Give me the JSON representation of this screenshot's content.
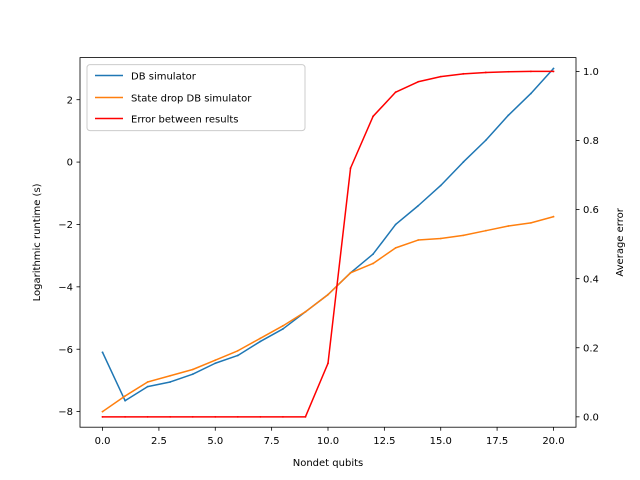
{
  "chart_data": {
    "type": "line",
    "xlabel": "Nondet qubits",
    "ylabel": "Logarithmic runtime (s)",
    "y2label": "Average error",
    "xlim": [
      -1,
      21
    ],
    "ylim": [
      -8.5,
      3.35
    ],
    "y2lim": [
      -0.03,
      1.04
    ],
    "x_ticks": [
      "0.0",
      "2.5",
      "5.0",
      "7.5",
      "10.0",
      "12.5",
      "15.0",
      "17.5",
      "20.0"
    ],
    "x_tick_values": [
      0,
      2.5,
      5,
      7.5,
      10,
      12.5,
      15,
      17.5,
      20
    ],
    "y_ticks": [
      "2",
      "0",
      "−2",
      "−4",
      "−6",
      "−8"
    ],
    "y_tick_values": [
      2,
      0,
      -2,
      -4,
      -6,
      -8
    ],
    "y2_ticks": [
      "1.0",
      "0.8",
      "0.6",
      "0.4",
      "0.2",
      "0.0"
    ],
    "y2_tick_values": [
      1.0,
      0.8,
      0.6,
      0.4,
      0.2,
      0.0
    ],
    "legend_position": "top-left",
    "x": [
      0,
      1,
      2,
      3,
      4,
      5,
      6,
      7,
      8,
      9,
      10,
      11,
      12,
      13,
      14,
      15,
      16,
      17,
      18,
      19,
      20
    ],
    "series": [
      {
        "name": "DB simulator",
        "axis": "left",
        "color": "#1f77b4",
        "values": [
          -6.1,
          -7.65,
          -7.2,
          -7.05,
          -6.8,
          -6.45,
          -6.2,
          -5.75,
          -5.35,
          -4.8,
          -4.25,
          -3.55,
          -2.95,
          -2.0,
          -1.4,
          -0.75,
          0.0,
          0.7,
          1.5,
          2.2,
          3.0
        ]
      },
      {
        "name": "State drop DB simulator",
        "axis": "left",
        "color": "#ff7f0e",
        "values": [
          -8.0,
          -7.5,
          -7.05,
          -6.85,
          -6.65,
          -6.35,
          -6.05,
          -5.65,
          -5.25,
          -4.8,
          -4.25,
          -3.55,
          -3.25,
          -2.75,
          -2.5,
          -2.45,
          -2.35,
          -2.2,
          -2.05,
          -1.95,
          -1.75
        ]
      },
      {
        "name": "Error between results",
        "axis": "right",
        "color": "#ff0000",
        "values": [
          0.0,
          0.0,
          0.0,
          0.0,
          0.0,
          0.0,
          0.0,
          0.0,
          0.0,
          0.0,
          0.155,
          0.72,
          0.87,
          0.94,
          0.97,
          0.985,
          0.993,
          0.997,
          0.999,
          1.0,
          1.0
        ]
      }
    ]
  }
}
